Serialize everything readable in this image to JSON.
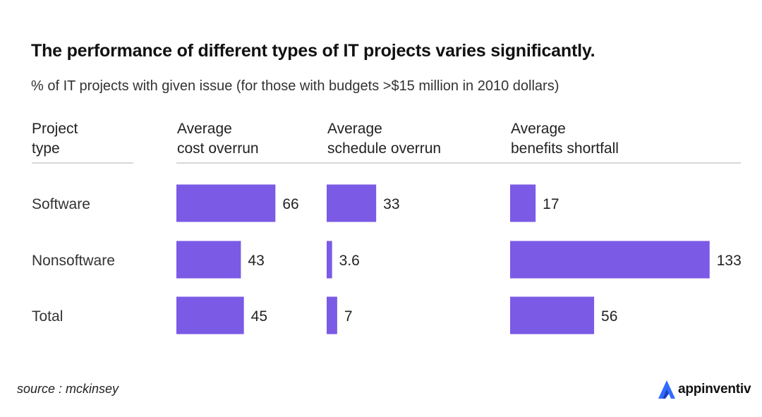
{
  "title": "The performance of different types of IT projects varies significantly.",
  "subtitle": "% of IT projects with given issue (for those with budgets >$15 million in 2010 dollars)",
  "source": "source : mckinsey",
  "brand": {
    "name": "appinventiv",
    "icon": "appinventiv-logo-icon"
  },
  "colors": {
    "bar": "#7B5AE6",
    "text": "#222222",
    "rule": "#cccccc"
  },
  "chart_data": {
    "type": "bar",
    "orientation": "horizontal",
    "row_header": [
      "Project",
      "type"
    ],
    "categories": [
      "Software",
      "Nonsoftware",
      "Total"
    ],
    "series": [
      {
        "name": "Average cost overrun",
        "header": [
          "Average",
          "cost overrun"
        ],
        "values": [
          66,
          43,
          45
        ]
      },
      {
        "name": "Average schedule overrun",
        "header": [
          "Average",
          "schedule overrun"
        ],
        "values": [
          33,
          3.6,
          7
        ]
      },
      {
        "name": "Average benefits shortfall",
        "header": [
          "Average",
          "benefits shortfall"
        ],
        "values": [
          17,
          133,
          56
        ]
      }
    ],
    "value_labels": [
      [
        "66",
        "43",
        "45"
      ],
      [
        "33",
        "3.6",
        "7"
      ],
      [
        "17",
        "133",
        "56"
      ]
    ],
    "unit": "%"
  }
}
